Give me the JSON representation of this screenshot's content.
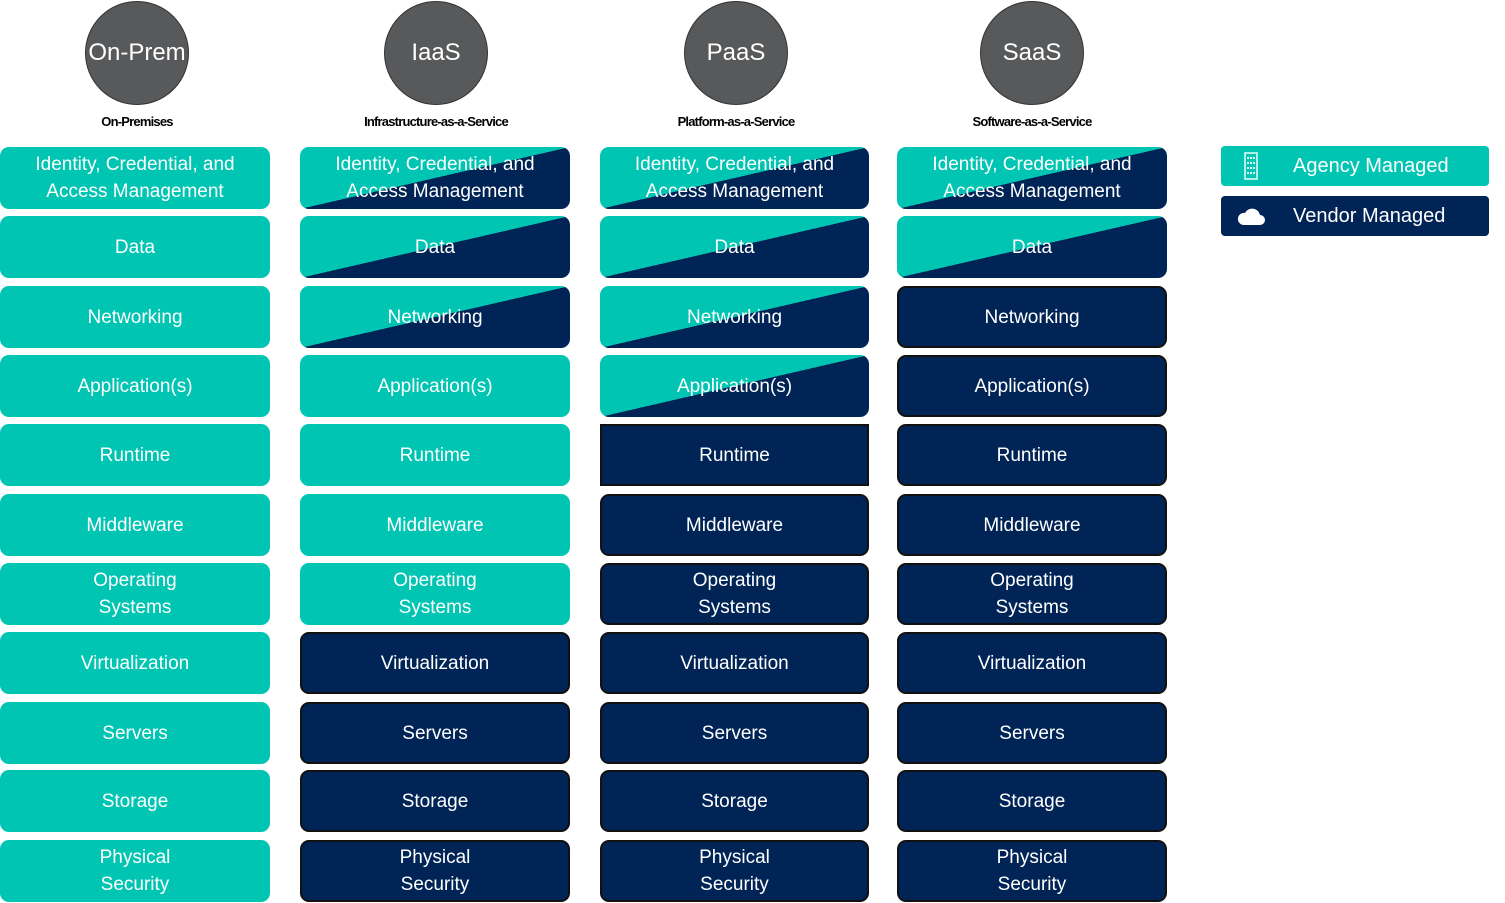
{
  "colors": {
    "agency": "#00c5b2",
    "vendor": "#002455",
    "circle": "#58595b"
  },
  "columns": [
    {
      "title": "On-Prem",
      "subtitle": "On-Premises"
    },
    {
      "title": "IaaS",
      "subtitle": "Infrastructure-as-a-Service"
    },
    {
      "title": "PaaS",
      "subtitle": "Platform-as-a-Service"
    },
    {
      "title": "SaaS",
      "subtitle": "Software-as-a-Service"
    }
  ],
  "rows": [
    {
      "label": "Identity, Credential, and\nAccess Management",
      "types": [
        "agency",
        "shared",
        "shared",
        "shared"
      ]
    },
    {
      "label": "Data",
      "types": [
        "agency",
        "shared",
        "shared",
        "shared"
      ]
    },
    {
      "label": "Networking",
      "types": [
        "agency",
        "shared",
        "shared",
        "vendor"
      ]
    },
    {
      "label": "Application(s)",
      "types": [
        "agency",
        "agency",
        "shared",
        "vendor"
      ]
    },
    {
      "label": "Runtime",
      "types": [
        "agency",
        "agency",
        "vendor",
        "vendor"
      ]
    },
    {
      "label": "Middleware",
      "types": [
        "agency",
        "agency",
        "vendor",
        "vendor"
      ]
    },
    {
      "label": "Operating\nSystems",
      "types": [
        "agency",
        "agency",
        "vendor",
        "vendor"
      ]
    },
    {
      "label": "Virtualization",
      "types": [
        "agency",
        "vendor",
        "vendor",
        "vendor"
      ]
    },
    {
      "label": "Servers",
      "types": [
        "agency",
        "vendor",
        "vendor",
        "vendor"
      ]
    },
    {
      "label": "Storage",
      "types": [
        "agency",
        "vendor",
        "vendor",
        "vendor"
      ]
    },
    {
      "label": "Physical\nSecurity",
      "types": [
        "agency",
        "vendor",
        "vendor",
        "vendor"
      ]
    }
  ],
  "legend": [
    {
      "label": "Agency Managed",
      "icon": "building-icon",
      "type": "agency"
    },
    {
      "label": "Vendor Managed",
      "icon": "cloud-icon",
      "type": "vendor"
    }
  ]
}
